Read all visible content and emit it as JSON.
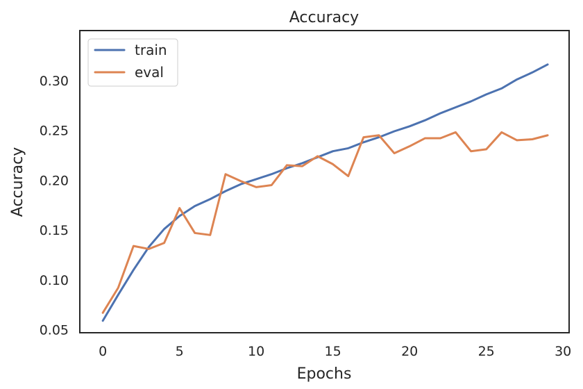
{
  "chart_data": {
    "type": "line",
    "title": "Accuracy",
    "xlabel": "Epochs",
    "ylabel": "Accuracy",
    "xlim": [
      -1.5,
      30.4
    ],
    "ylim": [
      0.047,
      0.35
    ],
    "xticks": [
      0,
      5,
      10,
      15,
      20,
      25,
      30
    ],
    "yticks": [
      0.05,
      0.1,
      0.15,
      0.2,
      0.25,
      0.3
    ],
    "xtick_labels": [
      "0",
      "5",
      "10",
      "15",
      "20",
      "25",
      "30"
    ],
    "ytick_labels": [
      "0.05",
      "0.10",
      "0.15",
      "0.20",
      "0.25",
      "0.30"
    ],
    "grid": false,
    "legend_position": "top-left",
    "x": [
      0,
      1,
      2,
      3,
      4,
      5,
      6,
      7,
      8,
      9,
      10,
      11,
      12,
      13,
      14,
      15,
      16,
      17,
      18,
      19,
      20,
      21,
      22,
      23,
      24,
      25,
      26,
      27,
      28,
      29
    ],
    "series": [
      {
        "name": "train",
        "color": "#4c72b0",
        "values": [
          0.059,
          0.085,
          0.11,
          0.133,
          0.151,
          0.164,
          0.174,
          0.181,
          0.189,
          0.196,
          0.201,
          0.206,
          0.212,
          0.217,
          0.223,
          0.229,
          0.232,
          0.238,
          0.243,
          0.249,
          0.254,
          0.26,
          0.267,
          0.273,
          0.279,
          0.286,
          0.292,
          0.301,
          0.308,
          0.316
        ]
      },
      {
        "name": "eval",
        "color": "#dd8452",
        "values": [
          0.067,
          0.092,
          0.134,
          0.131,
          0.137,
          0.172,
          0.147,
          0.145,
          0.206,
          0.199,
          0.193,
          0.195,
          0.215,
          0.214,
          0.224,
          0.216,
          0.204,
          0.243,
          0.245,
          0.227,
          0.234,
          0.242,
          0.242,
          0.248,
          0.229,
          0.231,
          0.248,
          0.24,
          0.241,
          0.245
        ]
      }
    ]
  }
}
